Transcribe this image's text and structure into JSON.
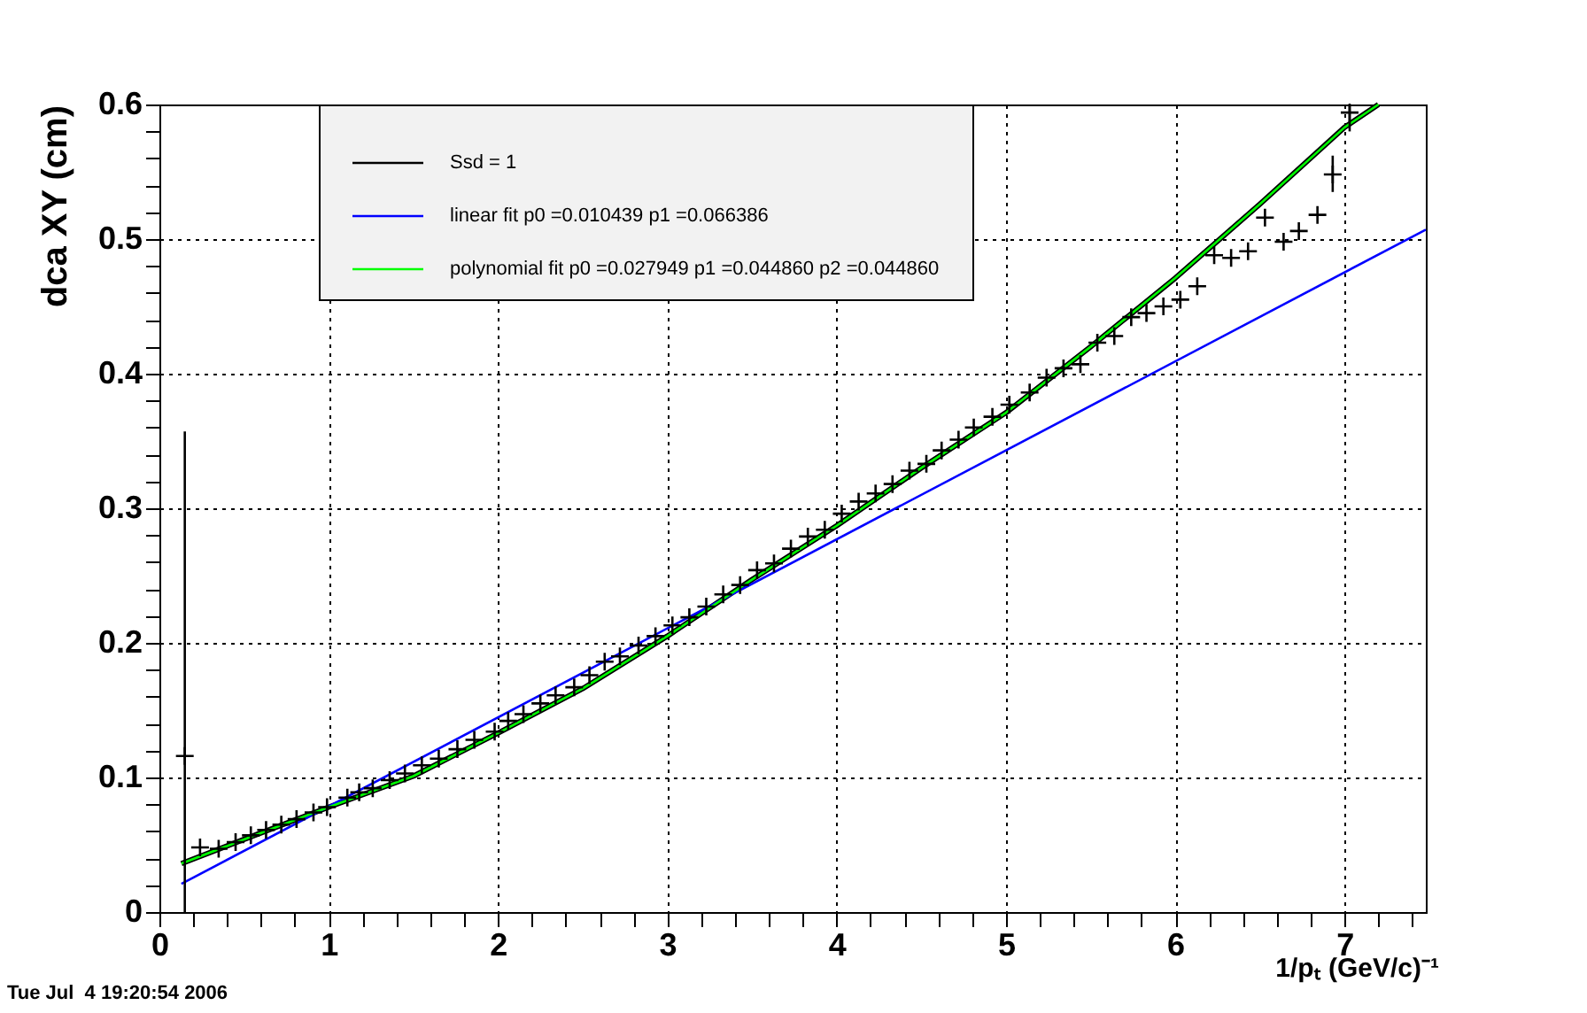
{
  "chart_data": {
    "type": "scatter",
    "xlabel": "1/pₜ (GeV/c)⁻¹",
    "ylabel": "dca XY (cm)",
    "annotations": [
      "Tue Jul  4 19:20:54 2006"
    ],
    "xlim": [
      0,
      7.48
    ],
    "ylim": [
      0,
      0.6
    ],
    "xticks": [
      0,
      {
        "value": 0.2,
        "label": null
      },
      {
        "value": 0.4,
        "label": null
      },
      {
        "value": 0.6,
        "label": null
      },
      {
        "value": 0.8,
        "label": null
      },
      1,
      {
        "value": 1.2,
        "label": null
      },
      {
        "value": 1.4,
        "label": null
      },
      {
        "value": 1.6,
        "label": null
      },
      {
        "value": 1.8,
        "label": null
      },
      2,
      {
        "value": 2.2,
        "label": null
      },
      {
        "value": 2.4,
        "label": null
      },
      {
        "value": 2.6,
        "label": null
      },
      {
        "value": 2.8,
        "label": null
      },
      3,
      {
        "value": 3.2,
        "label": null
      },
      {
        "value": 3.4,
        "label": null
      },
      {
        "value": 3.6,
        "label": null
      },
      {
        "value": 3.8,
        "label": null
      },
      4,
      {
        "value": 4.2,
        "label": null
      },
      {
        "value": 4.4,
        "label": null
      },
      {
        "value": 4.6,
        "label": null
      },
      {
        "value": 4.8,
        "label": null
      },
      5,
      {
        "value": 5.2,
        "label": null
      },
      {
        "value": 5.4,
        "label": null
      },
      {
        "value": 5.6,
        "label": null
      },
      {
        "value": 5.8,
        "label": null
      },
      6,
      {
        "value": 6.2,
        "label": null
      },
      {
        "value": 6.4,
        "label": null
      },
      {
        "value": 6.6,
        "label": null
      },
      {
        "value": 6.8,
        "label": null
      },
      7,
      {
        "value": 7.2,
        "label": null
      },
      {
        "value": 7.4,
        "label": null
      }
    ],
    "yticks": [
      0,
      {
        "value": 0.02,
        "label": null
      },
      {
        "value": 0.04,
        "label": null
      },
      {
        "value": 0.06,
        "label": null
      },
      {
        "value": 0.08,
        "label": null
      },
      0.1,
      {
        "value": 0.12,
        "label": null
      },
      {
        "value": 0.14,
        "label": null
      },
      {
        "value": 0.16,
        "label": null
      },
      {
        "value": 0.18,
        "label": null
      },
      0.2,
      {
        "value": 0.22,
        "label": null
      },
      {
        "value": 0.24,
        "label": null
      },
      {
        "value": 0.26,
        "label": null
      },
      {
        "value": 0.28,
        "label": null
      },
      0.3,
      {
        "value": 0.32,
        "label": null
      },
      {
        "value": 0.34,
        "label": null
      },
      {
        "value": 0.36,
        "label": null
      },
      {
        "value": 0.38,
        "label": null
      },
      0.4,
      {
        "value": 0.42,
        "label": null
      },
      {
        "value": 0.44,
        "label": null
      },
      {
        "value": 0.46,
        "label": null
      },
      {
        "value": 0.48,
        "label": null
      },
      0.5,
      {
        "value": 0.52,
        "label": null
      },
      {
        "value": 0.54,
        "label": null
      },
      {
        "value": 0.56,
        "label": null
      },
      {
        "value": 0.58,
        "label": null
      },
      0.6
    ],
    "grid": true,
    "legend": "top left",
    "series": [
      {
        "name": "Ssd = 1",
        "type": "line",
        "color": "#000000",
        "x": [
          0.13,
          0.5,
          1,
          1.5,
          2,
          2.5,
          3,
          3.5,
          4,
          4.5,
          5,
          5.5,
          6,
          6.5,
          7,
          7.2
        ],
        "values": [
          0.036,
          0.054,
          0.078,
          0.101,
          0.133,
          0.166,
          0.205,
          0.247,
          0.287,
          0.33,
          0.371,
          0.42,
          0.471,
          0.526,
          0.583,
          0.6
        ]
      },
      {
        "name": "linear fit p0 =0.010439  p1 =0.066386",
        "type": "line",
        "color": "#0000ff",
        "x": [
          0.13,
          7.48
        ],
        "values": [
          0.021,
          0.507
        ]
      },
      {
        "name": " polynomial fit p0 =0.027949  p1 =0.044860  p2 =0.044860",
        "type": "line",
        "color": "#00ff00",
        "x": [
          0.13,
          0.5,
          1,
          1.5,
          2,
          2.5,
          3,
          3.5,
          4,
          4.5,
          5,
          5.5,
          6,
          6.5,
          7,
          7.2
        ],
        "values": [
          0.036,
          0.054,
          0.078,
          0.101,
          0.133,
          0.166,
          0.205,
          0.247,
          0.287,
          0.33,
          0.371,
          0.42,
          0.471,
          0.526,
          0.583,
          0.6
        ]
      },
      {
        "type": "scatter",
        "color": "#000000",
        "marker": "cross",
        "x": [
          0.15,
          0.24,
          0.35,
          0.45,
          0.54,
          0.63,
          0.72,
          0.81,
          0.91,
          0.99,
          1.11,
          1.18,
          1.26,
          1.36,
          1.45,
          1.55,
          1.65,
          1.76,
          1.86,
          1.98,
          2.06,
          2.15,
          2.25,
          2.34,
          2.45,
          2.54,
          2.63,
          2.72,
          2.83,
          2.93,
          3.03,
          3.13,
          3.23,
          3.33,
          3.43,
          3.53,
          3.63,
          3.73,
          3.83,
          3.93,
          4.03,
          4.13,
          4.23,
          4.33,
          4.43,
          4.53,
          4.62,
          4.72,
          4.81,
          4.92,
          5.02,
          5.14,
          5.24,
          5.34,
          5.44,
          5.54,
          5.64,
          5.74,
          5.83,
          5.93,
          6.03,
          6.13,
          6.23,
          6.33,
          6.43,
          6.53,
          6.64,
          6.73,
          6.84,
          6.93,
          7.03
        ],
        "values": [
          0.116,
          0.048,
          0.047,
          0.052,
          0.057,
          0.061,
          0.065,
          0.069,
          0.074,
          0.078,
          0.085,
          0.089,
          0.092,
          0.098,
          0.103,
          0.109,
          0.114,
          0.121,
          0.128,
          0.134,
          0.142,
          0.147,
          0.155,
          0.161,
          0.167,
          0.176,
          0.186,
          0.19,
          0.198,
          0.205,
          0.213,
          0.219,
          0.227,
          0.236,
          0.243,
          0.254,
          0.259,
          0.27,
          0.279,
          0.284,
          0.296,
          0.305,
          0.311,
          0.318,
          0.328,
          0.333,
          0.343,
          0.351,
          0.36,
          0.368,
          0.377,
          0.386,
          0.397,
          0.404,
          0.407,
          0.423,
          0.428,
          0.442,
          0.445,
          0.45,
          0.455,
          0.465,
          0.488,
          0.486,
          0.491,
          0.516,
          0.498,
          0.506,
          0.518,
          0.548,
          0.594
        ],
        "errors": [
          [
            0,
            0.357
          ],
          null,
          null,
          null,
          null,
          null,
          null,
          null,
          null,
          null,
          null,
          null,
          null,
          null,
          null,
          null,
          null,
          null,
          null,
          null,
          null,
          null,
          null,
          null,
          null,
          null,
          null,
          null,
          null,
          null,
          null,
          null,
          null,
          null,
          null,
          null,
          null,
          null,
          null,
          null,
          null,
          null,
          null,
          null,
          null,
          null,
          null,
          null,
          null,
          null,
          null,
          null,
          null,
          null,
          null,
          null,
          null,
          null,
          null,
          null,
          null,
          null,
          null,
          null,
          null,
          null,
          null,
          null,
          null,
          [
            0.535,
            0.562
          ],
          [
            0.58,
            0.6
          ]
        ]
      }
    ]
  }
}
